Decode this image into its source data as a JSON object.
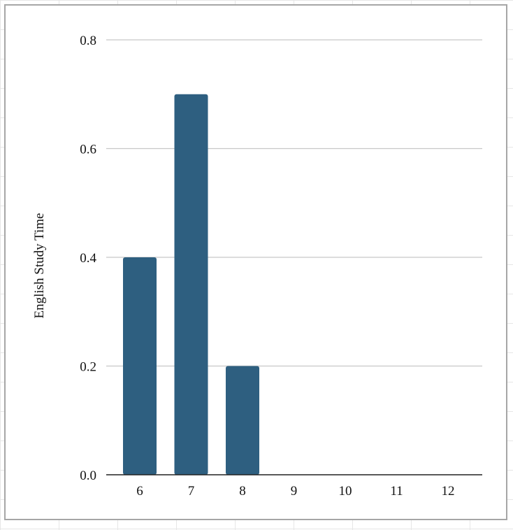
{
  "chart_data": {
    "type": "bar",
    "categories": [
      "6",
      "7",
      "8",
      "9",
      "10",
      "11",
      "12"
    ],
    "values": [
      0.4,
      0.7,
      0.2,
      0,
      0,
      0,
      0
    ],
    "title": "",
    "xlabel": "",
    "ylabel": "English Study Time",
    "ylim": [
      0,
      0.8
    ],
    "yticks": [
      "0.0",
      "0.2",
      "0.4",
      "0.6",
      "0.8"
    ],
    "grid": "horizontal",
    "legend": "none",
    "bar_color": "#2e5f80",
    "grid_color": "#c8c8c8",
    "axis_color": "#222222"
  }
}
